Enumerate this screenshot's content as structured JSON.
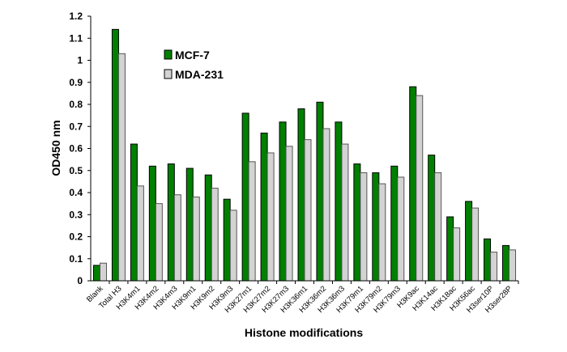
{
  "chart_data": {
    "type": "bar",
    "title": "",
    "xlabel": "Histone modifications",
    "ylabel": "OD450 nm",
    "ylim": [
      0,
      1.2
    ],
    "yticks": [
      "0",
      "0.1",
      "0.2",
      "0.3",
      "0.4",
      "0.5",
      "0.6",
      "0.7",
      "0.8",
      "0.9",
      "1",
      "1.1",
      "1.2"
    ],
    "grid": false,
    "legend_position": "top-left",
    "categories": [
      "Blank",
      "Total H3",
      "H3K4m1",
      "H3K4m2",
      "H3K4m3",
      "H3K9m1",
      "H3K9m2",
      "H3K9m3",
      "H3K27m1",
      "H3K27m2",
      "H3K27m3",
      "H3K36m1",
      "H3K36m2",
      "H3K36m3",
      "H3K79m1",
      "H3K79m2",
      "H3K79m3",
      "H3K9ac",
      "H3K14ac",
      "H3K18ac",
      "H3K56ac",
      "H3ser10P",
      "H3ser28P"
    ],
    "series": [
      {
        "name": "MCF-7",
        "color": "#008000",
        "values": [
          0.07,
          1.14,
          0.62,
          0.52,
          0.53,
          0.51,
          0.48,
          0.37,
          0.76,
          0.67,
          0.72,
          0.78,
          0.81,
          0.72,
          0.53,
          0.49,
          0.52,
          0.88,
          0.57,
          0.29,
          0.36,
          0.19,
          0.16
        ]
      },
      {
        "name": "MDA-231",
        "color": "#d3d3d3",
        "values": [
          0.08,
          1.03,
          0.43,
          0.35,
          0.39,
          0.38,
          0.42,
          0.32,
          0.54,
          0.58,
          0.61,
          0.64,
          0.69,
          0.62,
          0.49,
          0.44,
          0.47,
          0.84,
          0.49,
          0.24,
          0.33,
          0.13,
          0.14
        ]
      }
    ]
  }
}
